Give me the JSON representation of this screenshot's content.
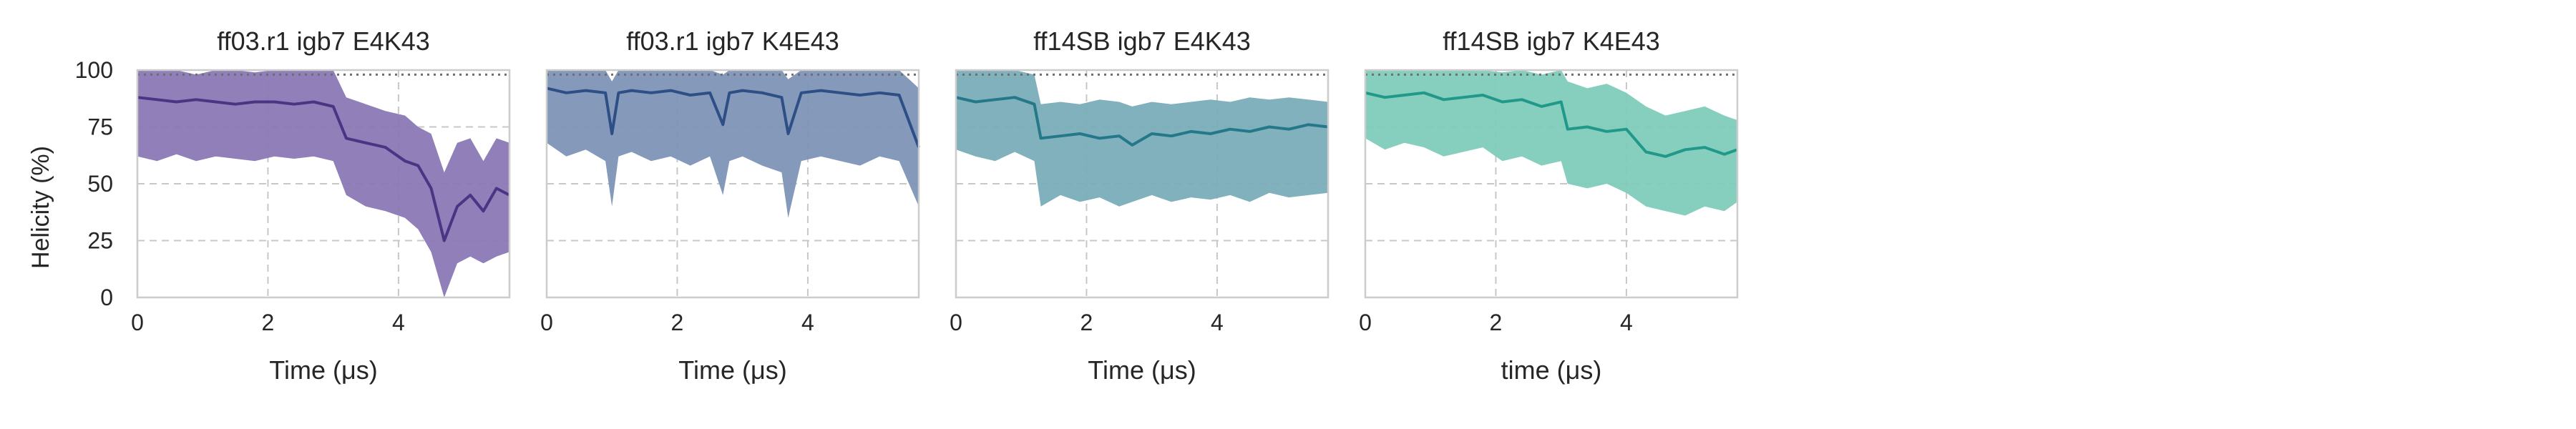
{
  "figure": {
    "ylabel": "Helicity (%)"
  },
  "chart_data": [
    {
      "type": "area",
      "title": "ff03.r1 igb7 E4K43",
      "xlabel": "Time (μs)",
      "ylabel": "Helicity (%)",
      "xlim": [
        0,
        5.7
      ],
      "ylim": [
        0,
        100
      ],
      "xticks": [
        0,
        2,
        4
      ],
      "yticks": [
        0,
        25,
        50,
        75,
        100
      ],
      "grid": true,
      "reference_line": 98,
      "color": "#4a3585",
      "band_color": "#8a78b4",
      "series": {
        "x": [
          0,
          0.3,
          0.6,
          0.9,
          1.2,
          1.5,
          1.8,
          2.1,
          2.4,
          2.7,
          3.0,
          3.2,
          3.5,
          3.8,
          4.1,
          4.3,
          4.5,
          4.7,
          4.9,
          5.1,
          5.3,
          5.5,
          5.7
        ],
        "mean": [
          88,
          87,
          86,
          87,
          86,
          85,
          86,
          86,
          85,
          86,
          84,
          70,
          68,
          66,
          60,
          58,
          48,
          25,
          40,
          45,
          38,
          48,
          45
        ],
        "lower": [
          62,
          60,
          63,
          60,
          62,
          61,
          60,
          62,
          61,
          62,
          60,
          45,
          40,
          38,
          35,
          30,
          20,
          0,
          15,
          18,
          15,
          18,
          20
        ],
        "upper": [
          100,
          100,
          100,
          98,
          100,
          100,
          99,
          100,
          100,
          100,
          100,
          88,
          85,
          82,
          80,
          75,
          72,
          55,
          68,
          70,
          60,
          70,
          68
        ]
      }
    },
    {
      "type": "area",
      "title": "ff03.r1 igb7 K4E43",
      "xlabel": "Time (μs)",
      "xlim": [
        0,
        5.7
      ],
      "ylim": [
        0,
        100
      ],
      "xticks": [
        0,
        2,
        4
      ],
      "yticks": [
        0,
        25,
        50,
        75,
        100
      ],
      "grid": true,
      "reference_line": 98,
      "color": "#2e4f86",
      "band_color": "#7e93b7",
      "series": {
        "x": [
          0,
          0.3,
          0.6,
          0.9,
          1.0,
          1.1,
          1.3,
          1.6,
          1.9,
          2.2,
          2.5,
          2.7,
          2.8,
          3.0,
          3.3,
          3.6,
          3.7,
          3.9,
          4.2,
          4.5,
          4.8,
          5.1,
          5.4,
          5.7
        ],
        "mean": [
          92,
          90,
          91,
          90,
          72,
          90,
          91,
          90,
          91,
          89,
          90,
          76,
          90,
          91,
          90,
          88,
          72,
          90,
          91,
          90,
          89,
          90,
          89,
          66
        ],
        "lower": [
          68,
          62,
          65,
          60,
          40,
          62,
          64,
          60,
          62,
          58,
          62,
          45,
          60,
          62,
          58,
          55,
          35,
          60,
          62,
          60,
          58,
          62,
          60,
          40
        ],
        "upper": [
          100,
          100,
          100,
          100,
          95,
          100,
          100,
          100,
          100,
          100,
          100,
          98,
          100,
          100,
          100,
          100,
          96,
          100,
          100,
          100,
          100,
          100,
          100,
          92
        ]
      }
    },
    {
      "type": "area",
      "title": "ff14SB igb7 E4K43",
      "xlabel": "Time (μs)",
      "xlim": [
        0,
        5.7
      ],
      "ylim": [
        0,
        100
      ],
      "xticks": [
        0,
        2,
        4
      ],
      "yticks": [
        0,
        25,
        50,
        75,
        100
      ],
      "grid": true,
      "reference_line": 98,
      "color": "#24788a",
      "band_color": "#79adb9",
      "series": {
        "x": [
          0,
          0.3,
          0.6,
          0.9,
          1.2,
          1.3,
          1.6,
          1.9,
          2.2,
          2.5,
          2.7,
          3.0,
          3.3,
          3.6,
          3.9,
          4.2,
          4.5,
          4.8,
          5.1,
          5.4,
          5.7
        ],
        "mean": [
          88,
          86,
          87,
          88,
          85,
          70,
          71,
          72,
          70,
          71,
          67,
          72,
          71,
          73,
          72,
          74,
          73,
          75,
          74,
          76,
          75
        ],
        "lower": [
          65,
          62,
          60,
          64,
          60,
          40,
          45,
          42,
          44,
          40,
          42,
          45,
          42,
          44,
          43,
          45,
          42,
          46,
          44,
          45,
          46
        ],
        "upper": [
          100,
          100,
          100,
          100,
          98,
          85,
          86,
          85,
          87,
          86,
          84,
          86,
          85,
          86,
          87,
          86,
          88,
          87,
          88,
          87,
          86
        ]
      }
    },
    {
      "type": "area",
      "title": "ff14SB igb7 K4E43",
      "xlabel": "time (μs)",
      "xlim": [
        0,
        5.7
      ],
      "ylim": [
        0,
        100
      ],
      "xticks": [
        0,
        2,
        4
      ],
      "yticks": [
        0,
        25,
        50,
        75,
        100
      ],
      "grid": true,
      "reference_line": 98,
      "color": "#21998a",
      "band_color": "#7fcbb9",
      "series": {
        "x": [
          0,
          0.3,
          0.6,
          0.9,
          1.2,
          1.5,
          1.8,
          2.1,
          2.4,
          2.7,
          3.0,
          3.1,
          3.4,
          3.7,
          4.0,
          4.3,
          4.6,
          4.9,
          5.2,
          5.5,
          5.7
        ],
        "mean": [
          90,
          88,
          89,
          90,
          87,
          88,
          89,
          86,
          87,
          84,
          86,
          74,
          75,
          73,
          74,
          64,
          62,
          65,
          66,
          63,
          65
        ],
        "lower": [
          70,
          65,
          68,
          66,
          62,
          64,
          66,
          60,
          62,
          58,
          60,
          50,
          48,
          50,
          46,
          40,
          38,
          36,
          40,
          38,
          42
        ],
        "upper": [
          100,
          100,
          100,
          100,
          100,
          100,
          100,
          99,
          100,
          98,
          100,
          95,
          92,
          94,
          90,
          84,
          80,
          82,
          84,
          80,
          78
        ]
      }
    }
  ]
}
